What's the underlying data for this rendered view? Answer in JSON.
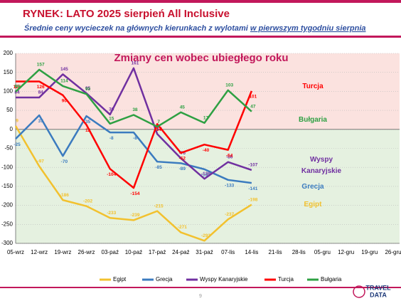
{
  "chart_data": {
    "type": "line",
    "title": "RYNEK: LATO 2025 sierpień All Inclusive",
    "subtitle": [
      "Średnie ceny wycieczek na głównych kierunkach z wylotami",
      "w pierwszym tygodniu sierpnia"
    ],
    "annotation": "Zmiany cen wobec ubiegłego roku",
    "categories": [
      "05-wrz",
      "12-wrz",
      "19-wrz",
      "26-wrz",
      "03-paź",
      "10-paź",
      "17-paź",
      "24-paź",
      "31-paź",
      "07-lis",
      "14-lis",
      "21-lis",
      "28-lis",
      "05-gru",
      "12-gru",
      "19-gru",
      "26-gru"
    ],
    "series": [
      {
        "name": "Egipt",
        "color": "#f2c12e",
        "values": [
          9,
          -97,
          -186,
          -202,
          -233,
          -239,
          -215,
          -271,
          -293,
          -237,
          -198,
          null,
          null,
          null,
          null,
          null,
          null
        ]
      },
      {
        "name": "Grecja",
        "color": "#3b7bbf",
        "values": [
          -25,
          37,
          -70,
          35,
          -8,
          -8,
          -85,
          -89,
          -105,
          -133,
          -141,
          null,
          null,
          null,
          null,
          null,
          null
        ]
      },
      {
        "name": "Wyspy Kanaryjskie",
        "color": "#7030a0",
        "values": [
          84,
          84,
          145,
          95,
          39,
          161,
          -12,
          -76,
          -130,
          -86,
          -107,
          null,
          null,
          null,
          null,
          null,
          null
        ]
      },
      {
        "name": "Turcja",
        "color": "#ff0000",
        "values": [
          126,
          126,
          90,
          12,
          -104,
          -154,
          14,
          -62,
          -40,
          -54,
          101,
          null,
          null,
          null,
          null,
          null,
          null
        ]
      },
      {
        "name": "Bułgaria",
        "color": "#2ea043",
        "values": [
          99,
          157,
          114,
          93,
          15,
          38,
          7,
          45,
          17,
          103,
          47,
          null,
          null,
          null,
          null,
          null,
          null
        ]
      }
    ],
    "ylim": [
      -300,
      200
    ],
    "yticks": [
      -300,
      -250,
      -200,
      -150,
      -100,
      -50,
      0,
      50,
      100,
      150,
      200
    ],
    "grid": true,
    "bands": {
      "positive": "#fbe2df",
      "negative": "#e5f1e0"
    },
    "legend": "bottom",
    "page": "9",
    "logo": [
      "TRAVEL",
      "DATA"
    ]
  }
}
